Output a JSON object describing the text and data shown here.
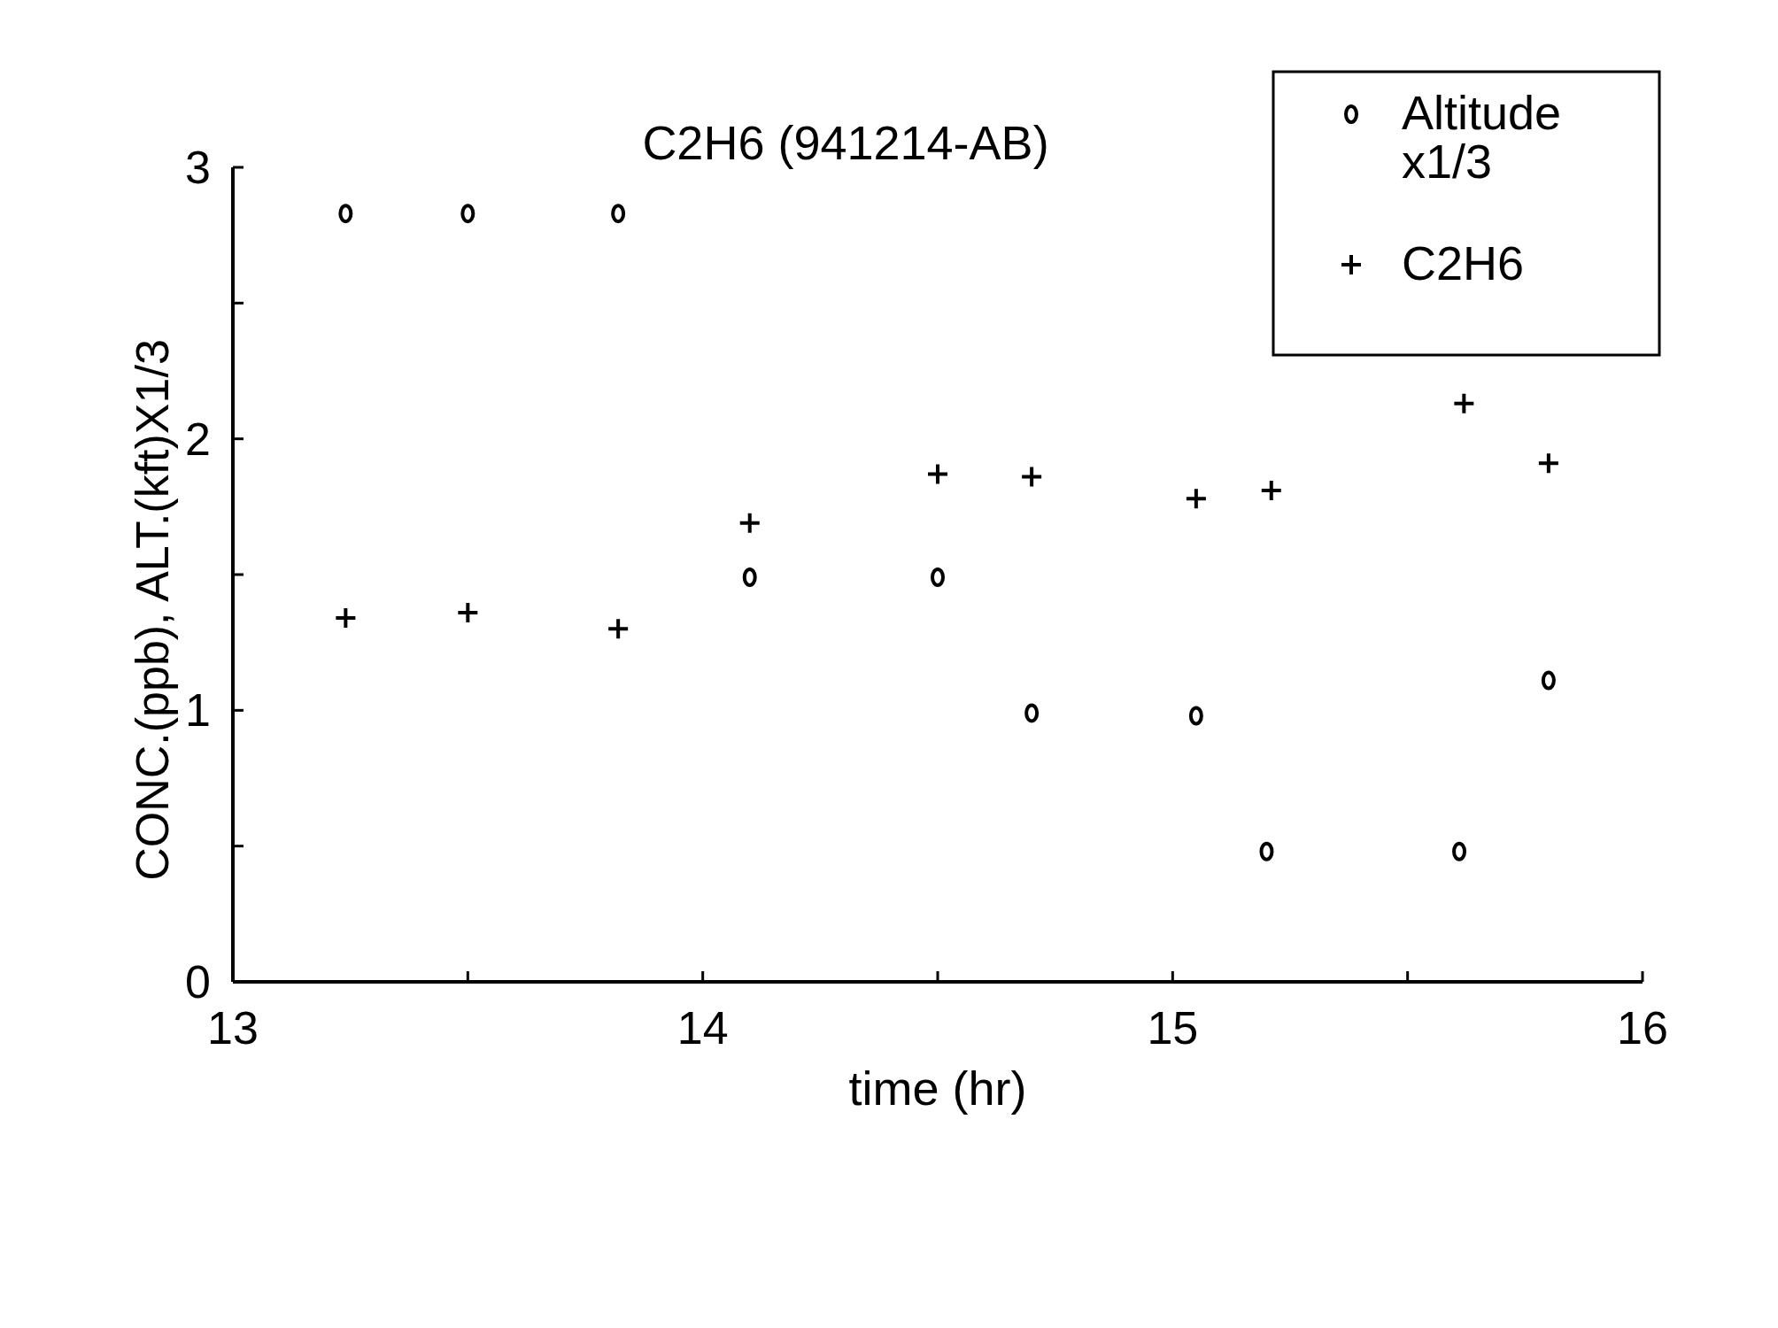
{
  "chart_data": {
    "type": "scatter",
    "title": "C2H6 (941214-AB)",
    "xlabel": "time (hr)",
    "ylabel": "CONC.(ppb), ALT.(kft)X1/3",
    "xlim": [
      13,
      16
    ],
    "xticks": [
      13,
      {
        "value": 13.5,
        "label": null
      },
      14,
      {
        "value": 14.5,
        "label": null
      },
      15,
      {
        "value": 15.5,
        "label": null
      },
      16
    ],
    "ylim": [
      0,
      3
    ],
    "yticks": [
      0,
      {
        "value": 0.5,
        "label": null
      },
      1,
      {
        "value": 1.5,
        "label": null
      },
      2,
      {
        "value": 2.5,
        "label": null
      },
      3
    ],
    "legend": "top right",
    "grid": false,
    "series": [
      {
        "name": "Altitude x1/3",
        "color": "#000000",
        "marker": "circle",
        "x": [
          13.24,
          13.5,
          13.82,
          14.1,
          14.5,
          14.7,
          15.05,
          15.2,
          15.61,
          15.8
        ],
        "values": [
          2.83,
          2.83,
          2.83,
          1.49,
          1.49,
          0.99,
          0.98,
          0.48,
          0.48,
          1.11
        ]
      },
      {
        "name": "C2H6",
        "color": "#000000",
        "marker": "cross",
        "x": [
          13.24,
          13.5,
          13.82,
          14.1,
          14.5,
          14.7,
          15.05,
          15.21,
          15.62,
          15.8
        ],
        "values": [
          1.34,
          1.36,
          1.3,
          1.69,
          1.87,
          1.86,
          1.78,
          1.81,
          2.13,
          1.91
        ]
      }
    ]
  }
}
